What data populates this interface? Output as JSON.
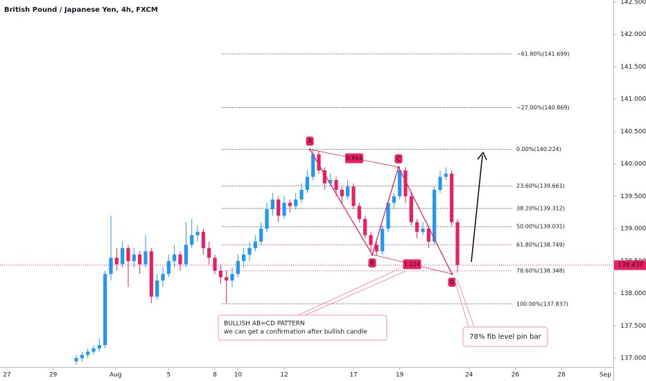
{
  "chart_data": {
    "type": "candlestick",
    "title": "British Pound / Japanese Yen, 4h, FXCM",
    "up_color": "#2196f3",
    "down_color": "#e91e63",
    "x": [
      3.3,
      3.55,
      3.8,
      4.05,
      4.3,
      4.55,
      4.8,
      5.05,
      5.3,
      5.55,
      5.8,
      6.05,
      6.3,
      6.55,
      6.8,
      7.05,
      7.3,
      7.55,
      7.8,
      8.05,
      8.3,
      8.55,
      8.8,
      9.05,
      9.3,
      9.55,
      9.8,
      10.05,
      10.3,
      10.55,
      10.8,
      11.05,
      11.3,
      11.55,
      11.8,
      12.05,
      12.3,
      12.55,
      12.8,
      13.05,
      13.3,
      13.55,
      13.8,
      14.05,
      14.3,
      14.55,
      14.8,
      15.05,
      15.3,
      15.55,
      15.8,
      16.05,
      16.3,
      16.55,
      16.8,
      17.05,
      17.3,
      17.55,
      17.8,
      18.05,
      18.3,
      18.55,
      18.8,
      19.05,
      19.3,
      19.55,
      19.8
    ],
    "ohlc": [
      [
        136.95,
        137.05,
        136.9,
        137.0
      ],
      [
        137.0,
        137.1,
        136.95,
        137.05
      ],
      [
        137.05,
        137.15,
        137.0,
        137.1
      ],
      [
        137.1,
        137.2,
        137.05,
        137.15
      ],
      [
        137.15,
        137.3,
        137.1,
        137.2
      ],
      [
        137.2,
        138.35,
        137.15,
        138.3
      ],
      [
        138.3,
        139.2,
        138.2,
        138.55
      ],
      [
        138.55,
        138.7,
        138.35,
        138.45
      ],
      [
        138.45,
        138.8,
        138.4,
        138.7
      ],
      [
        138.7,
        138.75,
        138.1,
        138.5
      ],
      [
        138.5,
        138.7,
        138.4,
        138.6
      ],
      [
        138.6,
        138.65,
        138.3,
        138.45
      ],
      [
        138.45,
        138.9,
        138.4,
        138.65
      ],
      [
        138.65,
        138.7,
        137.85,
        137.95
      ],
      [
        137.95,
        138.3,
        137.9,
        138.2
      ],
      [
        138.2,
        138.4,
        138.1,
        138.3
      ],
      [
        138.3,
        138.6,
        138.25,
        138.5
      ],
      [
        138.5,
        138.75,
        138.4,
        138.6
      ],
      [
        138.6,
        138.65,
        138.35,
        138.45
      ],
      [
        138.45,
        139.1,
        138.4,
        138.75
      ],
      [
        138.75,
        139.15,
        138.7,
        138.9
      ],
      [
        138.9,
        139.05,
        138.8,
        138.95
      ],
      [
        138.95,
        139.0,
        138.6,
        138.7
      ],
      [
        138.7,
        138.8,
        138.45,
        138.55
      ],
      [
        138.55,
        138.6,
        138.3,
        138.35
      ],
      [
        138.35,
        138.45,
        138.15,
        138.25
      ],
      [
        138.25,
        138.35,
        137.85,
        138.2
      ],
      [
        138.2,
        138.4,
        138.1,
        138.3
      ],
      [
        138.3,
        138.6,
        138.25,
        138.5
      ],
      [
        138.5,
        138.7,
        138.4,
        138.6
      ],
      [
        138.6,
        138.8,
        138.5,
        138.7
      ],
      [
        138.7,
        138.9,
        138.65,
        138.8
      ],
      [
        138.8,
        139.1,
        138.75,
        139.0
      ],
      [
        139.0,
        139.4,
        138.95,
        139.3
      ],
      [
        139.3,
        139.55,
        139.2,
        139.45
      ],
      [
        139.45,
        139.5,
        139.1,
        139.2
      ],
      [
        139.2,
        139.5,
        139.15,
        139.4
      ],
      [
        139.4,
        139.45,
        139.25,
        139.35
      ],
      [
        139.35,
        139.55,
        139.3,
        139.45
      ],
      [
        139.45,
        139.7,
        139.4,
        139.6
      ],
      [
        139.6,
        139.9,
        139.55,
        139.8
      ],
      [
        139.8,
        140.22,
        139.75,
        140.15
      ],
      [
        140.15,
        140.2,
        139.85,
        139.9
      ],
      [
        139.9,
        139.95,
        139.6,
        139.7
      ],
      [
        139.7,
        139.85,
        139.65,
        139.75
      ],
      [
        139.75,
        139.8,
        139.5,
        139.6
      ],
      [
        139.6,
        139.65,
        139.4,
        139.5
      ],
      [
        139.5,
        139.75,
        139.45,
        139.65
      ],
      [
        139.65,
        139.7,
        139.3,
        139.35
      ],
      [
        139.35,
        139.4,
        139.1,
        139.15
      ],
      [
        139.15,
        139.2,
        138.85,
        138.9
      ],
      [
        138.9,
        138.95,
        138.65,
        138.75
      ],
      [
        138.75,
        138.8,
        138.58,
        138.65
      ],
      [
        138.65,
        139.05,
        138.6,
        139.0
      ],
      [
        139.0,
        139.45,
        138.95,
        139.4
      ],
      [
        139.4,
        139.55,
        139.3,
        139.5
      ],
      [
        139.5,
        139.95,
        139.45,
        139.9
      ],
      [
        139.9,
        139.95,
        139.4,
        139.5
      ],
      [
        139.5,
        139.55,
        139.05,
        139.1
      ],
      [
        139.1,
        139.15,
        138.85,
        138.95
      ],
      [
        138.95,
        139.1,
        138.9,
        139.0
      ],
      [
        139.0,
        139.05,
        138.7,
        138.8
      ],
      [
        138.8,
        139.65,
        138.75,
        139.6
      ],
      [
        139.6,
        139.9,
        139.55,
        139.8
      ],
      [
        139.8,
        139.95,
        139.75,
        139.85
      ],
      [
        139.85,
        139.9,
        139.05,
        139.1
      ],
      [
        139.1,
        139.15,
        138.32,
        138.44
      ]
    ],
    "xlim": [
      0,
      26.55
    ],
    "xticks": [
      {
        "value": 0.3,
        "label": "27"
      },
      {
        "value": 2.3,
        "label": "29"
      },
      {
        "value": 5.0,
        "label": "Aug"
      },
      {
        "value": 7.3,
        "label": "5"
      },
      {
        "value": 9.3,
        "label": "8"
      },
      {
        "value": 10.3,
        "label": "10"
      },
      {
        "value": 12.3,
        "label": "12"
      },
      {
        "value": 15.3,
        "label": "17"
      },
      {
        "value": 17.3,
        "label": "19"
      },
      {
        "value": 20.3,
        "label": "24"
      },
      {
        "value": 22.3,
        "label": "26"
      },
      {
        "value": 24.3,
        "label": "28"
      },
      {
        "value": 26.2,
        "label": "Sep"
      }
    ],
    "ylim": [
      136.861,
      142.532
    ],
    "yticks": [
      {
        "value": 137.0,
        "label": "137.000"
      },
      {
        "value": 137.5,
        "label": "137.500"
      },
      {
        "value": 138.0,
        "label": "138.000"
      },
      {
        "value": 138.5,
        "label": "138.500"
      },
      {
        "value": 139.0,
        "label": "139.000"
      },
      {
        "value": 139.5,
        "label": "139.500"
      },
      {
        "value": 140.0,
        "label": "140.000"
      },
      {
        "value": 140.5,
        "label": "140.500"
      },
      {
        "value": 141.0,
        "label": "141.000"
      },
      {
        "value": 141.5,
        "label": "141.500"
      },
      {
        "value": 142.0,
        "label": "142.000"
      },
      {
        "value": 142.5,
        "label": "142.500"
      }
    ],
    "last_price": 138.437,
    "last_price_color": "#e91e63",
    "fib_x": [
      9.6,
      22.2
    ],
    "fib_levels": [
      {
        "label": "−61.80%(141.699)",
        "value": 141.699,
        "color": "#131722"
      },
      {
        "label": "−27.00%(140.869)",
        "value": 140.869,
        "color": "#131722"
      },
      {
        "label": "0.00%(140.224)",
        "value": 140.224,
        "color": "#131722"
      },
      {
        "label": "23.60%(139.661)",
        "value": 139.661,
        "color": "#131722"
      },
      {
        "label": "38.20%(139.312)",
        "value": 139.312,
        "color": "#131722"
      },
      {
        "label": "50.00%(139.031)",
        "value": 139.031,
        "color": "#131722"
      },
      {
        "label": "61.80%(138.749)",
        "value": 138.749,
        "color": "#e91e63"
      },
      {
        "label": "78.60%(138.348)",
        "value": 138.348,
        "color": "#e91e63"
      },
      {
        "label": "100.00%(137.837)",
        "value": 137.837,
        "color": "#131722"
      }
    ],
    "pattern": {
      "color": "#e91e63",
      "points": [
        {
          "label": "A",
          "x": 13.41,
          "y": 140.224
        },
        {
          "label": "B",
          "x": 16.11,
          "y": 138.6
        },
        {
          "label": "C",
          "x": 17.25,
          "y": 139.95
        },
        {
          "label": "D",
          "x": 19.56,
          "y": 138.3
        }
      ],
      "ratios": [
        0.844,
        1.224
      ]
    },
    "annotations": [
      {
        "lines": [
          "BULLISH AB=CD PATTERN",
          "we can get a confirmation after bullish candle"
        ]
      },
      {
        "lines": [
          "78% fib level pin bar"
        ]
      }
    ]
  }
}
